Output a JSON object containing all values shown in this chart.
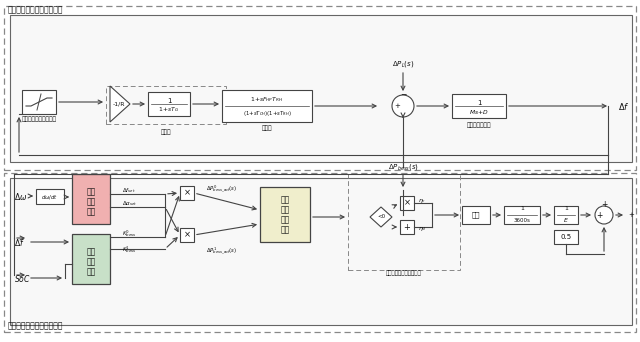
{
  "title_top": "传统机组参与电网一次调频",
  "title_bottom": "储能电池辅助电网一次调频",
  "bg_color": "#ffffff",
  "lc": "#444444",
  "pink_fill": "#f0b0b0",
  "yellow_fill": "#f0eecc",
  "green_fill": "#c8e0c8",
  "label_deadzone_top": "传统机组一次调频死区",
  "label_governor": "调速器",
  "label_turbine": "汽轮机",
  "label_rotor": "转子惯性及负荷",
  "label_bess_dead": [
    "储能",
    "人工",
    "死区"
  ],
  "label_bess_out": [
    "储能",
    "出力",
    "约束"
  ],
  "label_mode": [
    "储能",
    "控制",
    "模式",
    "选择"
  ],
  "label_batt_model": "储能电池充放电效率模型",
  "label_limiter": "限幅"
}
